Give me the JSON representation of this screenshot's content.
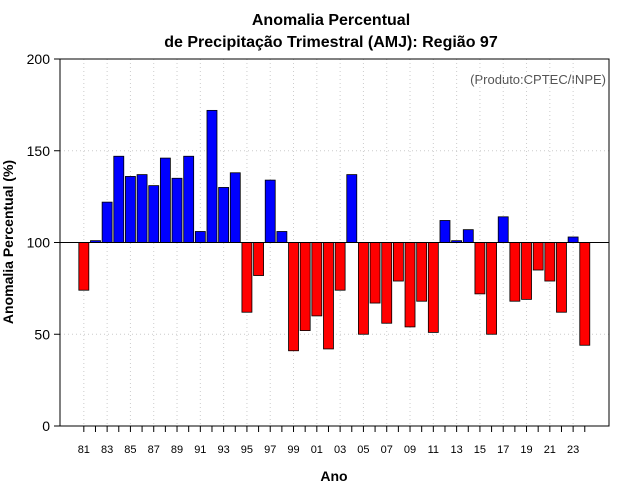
{
  "chart_data": {
    "type": "bar",
    "title_line1": "Anomalia Percentual",
    "title_line2": "de Precipitação Trimestral (AMJ): Região 97",
    "xlabel": "Ano",
    "ylabel": "Anomalia Percentual (%)",
    "credit": "(Produto:CPTEC/INPE)",
    "baseline": 100,
    "ylim": [
      0,
      200
    ],
    "yticks": [
      0,
      50,
      100,
      150,
      200
    ],
    "years": [
      1981,
      1982,
      1983,
      1984,
      1985,
      1986,
      1987,
      1988,
      1989,
      1990,
      1991,
      1992,
      1993,
      1994,
      1995,
      1996,
      1997,
      1998,
      1999,
      2000,
      2001,
      2002,
      2003,
      2004,
      2005,
      2006,
      2007,
      2008,
      2009,
      2010,
      2011,
      2012,
      2013,
      2014,
      2015,
      2016,
      2017,
      2018,
      2019,
      2020,
      2021,
      2022,
      2023,
      2024
    ],
    "xtick_labels": [
      "81",
      "83",
      "85",
      "87",
      "89",
      "91",
      "93",
      "95",
      "97",
      "99",
      "01",
      "03",
      "05",
      "07",
      "09",
      "11",
      "13",
      "15",
      "17",
      "19",
      "21",
      "23"
    ],
    "values": [
      74,
      101,
      122,
      147,
      136,
      137,
      131,
      146,
      135,
      147,
      106,
      172,
      130,
      138,
      62,
      82,
      134,
      106,
      41,
      52,
      60,
      42,
      74,
      137,
      50,
      67,
      56,
      79,
      54,
      68,
      51,
      112,
      101,
      107,
      72,
      50,
      114,
      68,
      69,
      85,
      79,
      62,
      103,
      44
    ],
    "colors": {
      "positive": "#0000ff",
      "negative": "#ff0000",
      "grid": "#cccccc"
    }
  }
}
